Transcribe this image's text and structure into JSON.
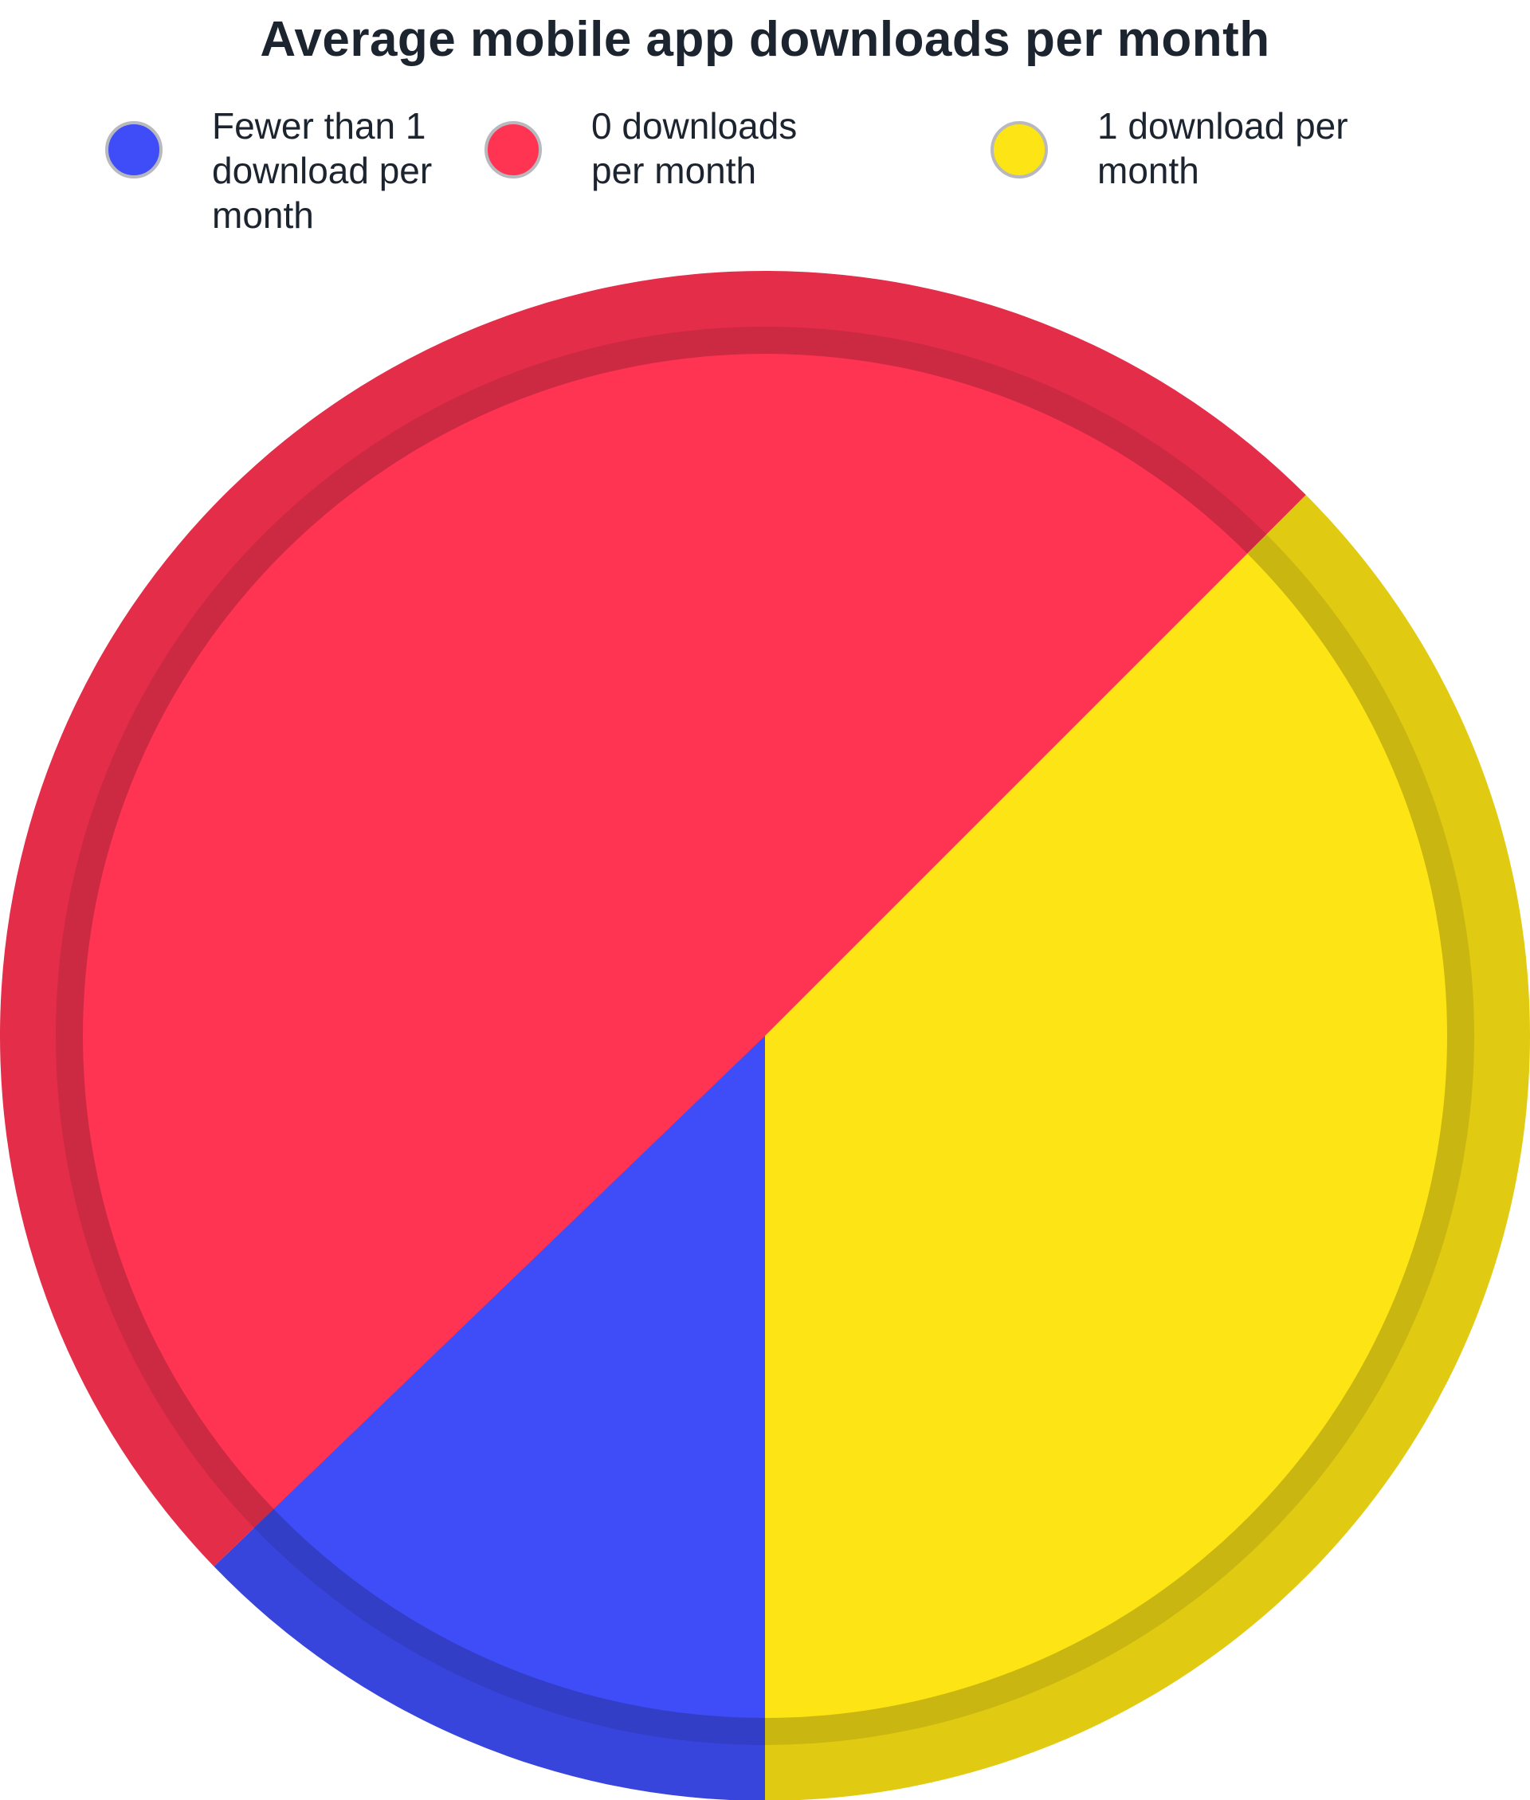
{
  "chart_data": {
    "type": "pie",
    "title": "Average mobile app downloads per month",
    "legend_placement": "top",
    "slices": [
      {
        "name": "Fewer than 1 download per month",
        "value": 12.8,
        "color": "#3f4df8"
      },
      {
        "name": "0 downloads per month",
        "value": 49.7,
        "color": "#ff3352"
      },
      {
        "name": "1 download per month",
        "value": 37.5,
        "color": "#fde414"
      }
    ]
  }
}
